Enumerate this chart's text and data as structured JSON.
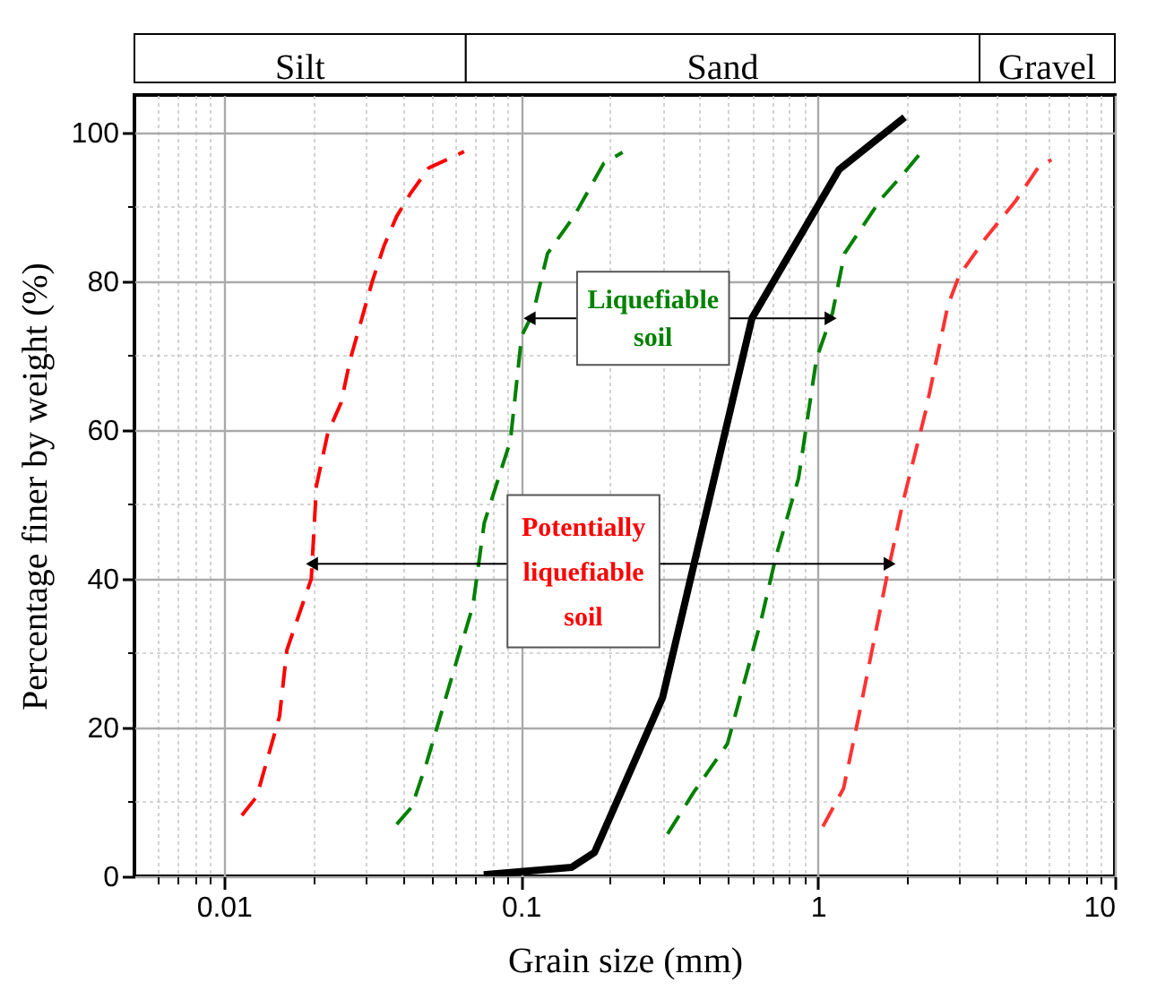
{
  "chart_data": {
    "type": "line",
    "xlabel": "Grain size (mm)",
    "ylabel": "Percentage finer by weight (%)",
    "log": "x",
    "grid": true,
    "xlim": [
      0.005,
      10
    ],
    "ylim": [
      0,
      105
    ],
    "xticks": [
      {
        "value": 0.006,
        "label": null
      },
      {
        "value": 0.007,
        "label": null
      },
      {
        "value": 0.008,
        "label": null
      },
      {
        "value": 0.009,
        "label": null
      },
      0.01,
      {
        "value": 0.02,
        "label": null
      },
      {
        "value": 0.03,
        "label": null
      },
      {
        "value": 0.04,
        "label": null
      },
      {
        "value": 0.05,
        "label": null
      },
      {
        "value": 0.06,
        "label": null
      },
      {
        "value": 0.07,
        "label": null
      },
      {
        "value": 0.08,
        "label": null
      },
      {
        "value": 0.09,
        "label": null
      },
      0.1,
      {
        "value": 0.2,
        "label": null
      },
      {
        "value": 0.3,
        "label": null
      },
      {
        "value": 0.4,
        "label": null
      },
      {
        "value": 0.5,
        "label": null
      },
      {
        "value": 0.6,
        "label": null
      },
      {
        "value": 0.7,
        "label": null
      },
      {
        "value": 0.8,
        "label": null
      },
      {
        "value": 0.9,
        "label": null
      },
      1,
      {
        "value": 2,
        "label": null
      },
      {
        "value": 3,
        "label": null
      },
      {
        "value": 4,
        "label": null
      },
      {
        "value": 5,
        "label": null
      },
      {
        "value": 6,
        "label": null
      },
      {
        "value": 7,
        "label": null
      },
      {
        "value": 8,
        "label": null
      },
      {
        "value": 9,
        "label": null
      },
      10
    ],
    "yticks": [
      0,
      {
        "value": 10,
        "label": null
      },
      20,
      {
        "value": 30,
        "label": null
      },
      40,
      {
        "value": 50,
        "label": null
      },
      60,
      {
        "value": 70,
        "label": null
      },
      80,
      {
        "value": 90,
        "label": null
      },
      100
    ],
    "series": [
      {
        "color": "#ff0000",
        "line_style": "dashed",
        "x": [
          0.0115,
          0.0129,
          0.0154,
          0.0163,
          0.0197,
          0.0205,
          0.0224,
          0.0248,
          0.0267,
          0.0317,
          0.0346,
          0.0382,
          0.0424,
          0.049,
          0.06,
          0.0644
        ],
        "values": [
          8.2,
          10.7,
          21.5,
          30.4,
          40,
          52.5,
          59.6,
          63.6,
          69.6,
          80.1,
          84.7,
          88.7,
          91.7,
          95.2,
          96.8,
          97.4
        ]
      },
      {
        "color": "#008000",
        "line_style": "dashed",
        "x": [
          0.0382,
          0.0429,
          0.0482,
          0.069,
          0.0753,
          0.0922,
          0.1006,
          0.11,
          0.123,
          0.151,
          0.19,
          0.22
        ],
        "values": [
          7,
          9.3,
          15.3,
          36.4,
          47.5,
          58.5,
          72.6,
          75.7,
          83.7,
          88.7,
          95.8,
          97.3
        ]
      },
      {
        "color": "#000000",
        "line_style": "solid",
        "x": [
          0.075,
          0.148,
          0.177,
          0.3,
          0.6,
          1.18,
          1.96
        ],
        "values": [
          0.2,
          1.2,
          3.2,
          24,
          75,
          95,
          102
        ]
      },
      {
        "color": "#008000",
        "line_style": "dashed",
        "x": [
          0.312,
          0.382,
          0.496,
          0.644,
          0.723,
          0.861,
          0.99,
          1.12,
          1.23,
          1.63,
          1.94,
          2.24
        ],
        "values": [
          5.7,
          11.3,
          17.8,
          34.4,
          43,
          53.5,
          69.6,
          75.7,
          83.7,
          91,
          94.4,
          97.4
        ]
      },
      {
        "color": "#ff3333",
        "line_style": "dashed",
        "x": [
          1.04,
          1.22,
          1.37,
          1.54,
          1.71,
          1.94,
          2.31,
          2.74,
          2.99,
          3.66,
          4.62,
          5.51,
          6.11
        ],
        "values": [
          6.7,
          11.8,
          21.3,
          31.4,
          40.4,
          50.5,
          62.6,
          76.7,
          80.7,
          85.7,
          90.7,
          95.2,
          96.3
        ]
      }
    ],
    "annotations": [
      "Silt",
      "Sand",
      "Gravel",
      {
        "text": "Liquefiable soil",
        "x": 0.107,
        "y": 75
      },
      {
        "text": "Potentially liquefiable soil",
        "x": 0.0198,
        "y": 42
      }
    ]
  }
}
